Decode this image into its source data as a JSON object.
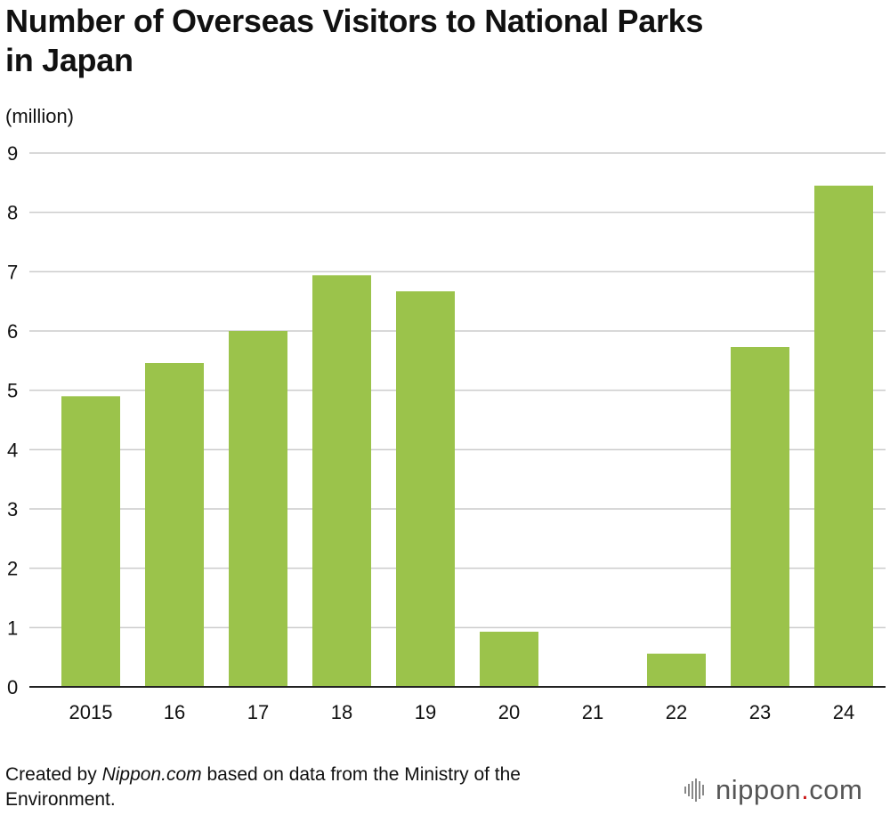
{
  "chart_data": {
    "type": "bar",
    "title_line1": "Number of Overseas Visitors to National Parks",
    "title_line2": "in Japan",
    "ylabel": "(million)",
    "xlabel": "",
    "categories": [
      "2015",
      "16",
      "17",
      "18",
      "19",
      "20",
      "21",
      "22",
      "23",
      "24"
    ],
    "values": [
      4.9,
      5.46,
      6.0,
      6.94,
      6.67,
      0.93,
      0,
      0.56,
      5.73,
      8.45
    ],
    "ylim": [
      0,
      9
    ],
    "yticks": [
      "0",
      "1",
      "2",
      "3",
      "4",
      "5",
      "6",
      "7",
      "8",
      "9"
    ],
    "grid": true,
    "colors": {
      "bar": "#9bc34b",
      "grid": "#cccccc",
      "axis": "#222222"
    }
  },
  "footer": {
    "prefix": "Created by ",
    "source_name": "Nippon.com",
    "suffix": " based on data from the Ministry of the Environment."
  },
  "logo": {
    "name": "nippon",
    "dot": ".",
    "tld": "com",
    "icon": "sound-wave-icon"
  }
}
